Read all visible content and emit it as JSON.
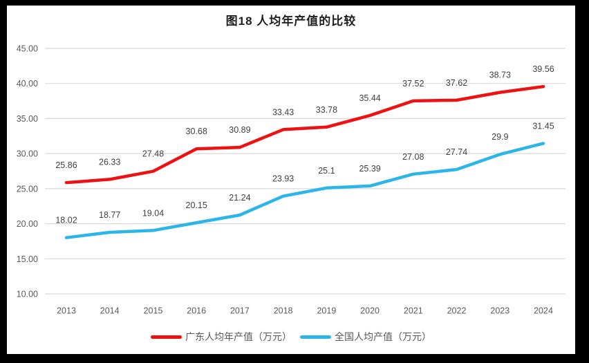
{
  "chart_data": {
    "type": "line",
    "title": "图18 人均年产值的比较",
    "x": [
      "2013",
      "2014",
      "2015",
      "2016",
      "2017",
      "2018",
      "2019",
      "2020",
      "2021",
      "2022",
      "2023",
      "2024"
    ],
    "series": [
      {
        "name": "广东人均年产值（万元）",
        "color": "#ED1111",
        "values": [
          25.86,
          26.33,
          27.48,
          30.68,
          30.89,
          33.43,
          33.78,
          35.44,
          37.52,
          37.62,
          38.73,
          39.56
        ]
      },
      {
        "name": "全国人均产值（万元）",
        "color": "#2BB5E8",
        "values": [
          18.02,
          18.77,
          19.04,
          20.15,
          21.24,
          23.93,
          25.1,
          25.39,
          27.08,
          27.74,
          29.9,
          31.45
        ]
      }
    ],
    "ylim": [
      10,
      45
    ],
    "ytick_step": 5,
    "ytick_labels": [
      "10.00",
      "15.00",
      "20.00",
      "25.00",
      "30.00",
      "35.00",
      "40.00",
      "45.00"
    ],
    "grid": "horizontal",
    "legend_position": "bottom",
    "data_labels": true
  },
  "colors": {
    "frame": "#000000",
    "panel": "#FFFFFF",
    "grid": "#D9D9D9",
    "axis_text": "#595959",
    "label_text": "#3F3F3F",
    "title_text": "#1F1F1F"
  }
}
